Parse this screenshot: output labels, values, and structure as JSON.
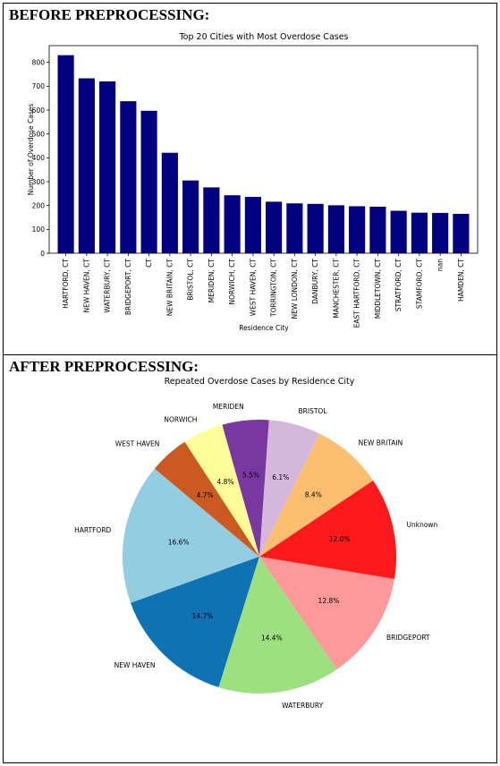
{
  "sections": {
    "before": "BEFORE PREPROCESSING:",
    "after": "AFTER PREPROCESSING:"
  },
  "chart_data": [
    {
      "type": "bar",
      "title": "Top 20 Cities with Most Overdose Cases",
      "xlabel": "Residence City",
      "ylabel": "Number of Overdose Cases",
      "categories": [
        "HARTFORD, CT",
        "NEW HAVEN, CT",
        "WATERBURY, CT",
        "BRIDGEPORT, CT",
        "CT",
        "NEW BRITAIN, CT",
        "BRISTOL, CT",
        "MERIDEN, CT",
        "NORWICH, CT",
        "WEST HAVEN, CT",
        "TORRINGTON, CT",
        "NEW LONDON, CT",
        "DANBURY, CT",
        "MANCHESTER, CT",
        "EAST HARTFORD, CT",
        "MIDDLETOWN, CT",
        "STRATFORD, CT",
        "STAMFORD, CT",
        "nan",
        "HAMDEN, CT"
      ],
      "values": [
        830,
        733,
        720,
        637,
        597,
        421,
        305,
        276,
        243,
        236,
        216,
        209,
        207,
        201,
        197,
        195,
        178,
        170,
        169,
        165
      ],
      "yticks": [
        0,
        100,
        200,
        300,
        400,
        500,
        600,
        700,
        800
      ],
      "ylim": [
        0,
        870
      ],
      "color": "#000080",
      "grid": false
    },
    {
      "type": "pie",
      "title": "Repeated Overdose Cases by Residence City",
      "slices": [
        {
          "label": "HARTFORD",
          "value": 16.6,
          "pct": "16.6%",
          "color": "#92CDE2"
        },
        {
          "label": "NEW HAVEN",
          "value": 14.7,
          "pct": "14.7%",
          "color": "#0F73B3"
        },
        {
          "label": "WATERBURY",
          "value": 14.4,
          "pct": "14.4%",
          "color": "#9CE080"
        },
        {
          "label": "BRIDGEPORT",
          "value": 12.8,
          "pct": "12.8%",
          "color": "#FE9999"
        },
        {
          "label": "Unknown",
          "value": 12.0,
          "pct": "12.0%",
          "color": "#FE1A1A"
        },
        {
          "label": "NEW BRITAIN",
          "value": 8.4,
          "pct": "8.4%",
          "color": "#FDBF6F"
        },
        {
          "label": "BRISTOL",
          "value": 6.1,
          "pct": "6.1%",
          "color": "#D5B7DC"
        },
        {
          "label": "MERIDEN",
          "value": 5.5,
          "pct": "5.5%",
          "color": "#7937A0"
        },
        {
          "label": "NORWICH",
          "value": 4.8,
          "pct": "4.8%",
          "color": "#FEFE99"
        },
        {
          "label": "WEST HAVEN",
          "value": 4.7,
          "pct": "4.7%",
          "color": "#CB5A22"
        }
      ]
    }
  ]
}
